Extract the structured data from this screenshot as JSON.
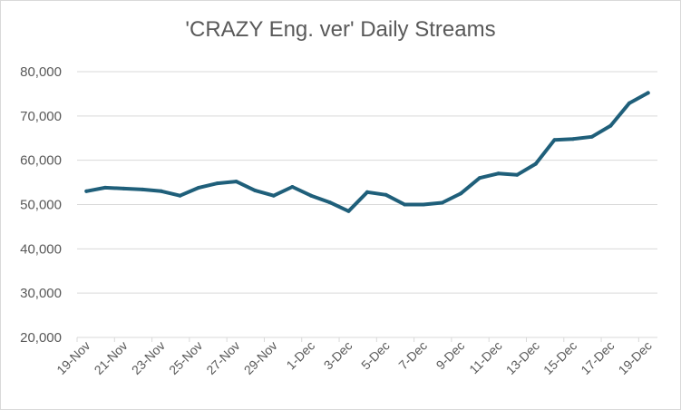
{
  "chart_data": {
    "type": "line",
    "title": "'CRAZY Eng. ver' Daily Streams",
    "xlabel": "",
    "ylabel": "",
    "ylim": [
      20000,
      80000
    ],
    "yticks": [
      "20,000",
      "30,000",
      "40,000",
      "50,000",
      "60,000",
      "70,000",
      "80,000"
    ],
    "ytick_values": [
      20000,
      30000,
      40000,
      50000,
      60000,
      70000,
      80000
    ],
    "grid": true,
    "legend": "none",
    "color": "#1f5f7a",
    "x": [
      "19-Nov",
      "20-Nov",
      "21-Nov",
      "22-Nov",
      "23-Nov",
      "24-Nov",
      "25-Nov",
      "26-Nov",
      "27-Nov",
      "28-Nov",
      "29-Nov",
      "30-Nov",
      "1-Dec",
      "2-Dec",
      "3-Dec",
      "4-Dec",
      "5-Dec",
      "6-Dec",
      "7-Dec",
      "8-Dec",
      "9-Dec",
      "10-Dec",
      "11-Dec",
      "12-Dec",
      "13-Dec",
      "14-Dec",
      "15-Dec",
      "16-Dec",
      "17-Dec",
      "18-Dec",
      "19-Dec"
    ],
    "xtick_labels": [
      "19-Nov",
      "21-Nov",
      "23-Nov",
      "25-Nov",
      "27-Nov",
      "29-Nov",
      "1-Dec",
      "3-Dec",
      "5-Dec",
      "7-Dec",
      "9-Dec",
      "11-Dec",
      "13-Dec",
      "15-Dec",
      "17-Dec",
      "19-Dec"
    ],
    "series": [
      {
        "values": [
          53000,
          53800,
          53600,
          53400,
          53000,
          52000,
          53800,
          54800,
          55200,
          53200,
          52000,
          54000,
          52000,
          50500,
          48500,
          52800,
          52200,
          50000,
          50000,
          50400,
          52500,
          56000,
          57000,
          56700,
          59200,
          64600,
          64800,
          65300,
          67800,
          72900,
          75200
        ]
      }
    ]
  }
}
